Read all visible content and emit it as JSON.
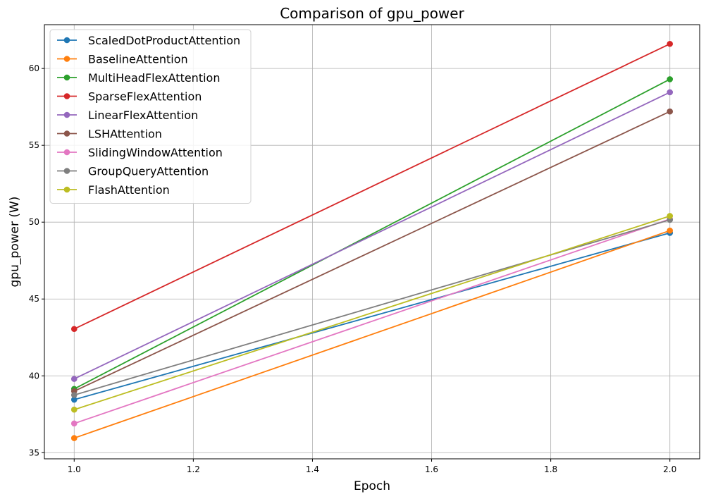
{
  "chart_data": {
    "type": "line",
    "title": "Comparison of gpu_power",
    "xlabel": "Epoch",
    "ylabel": "gpu_power (W)",
    "x": [
      1.0,
      2.0
    ],
    "xlim": [
      0.95,
      2.05
    ],
    "ylim": [
      34.6,
      62.85
    ],
    "xticks": [
      1.0,
      1.2,
      1.4,
      1.6,
      1.8,
      2.0
    ],
    "xtick_labels": [
      "1.0",
      "1.2",
      "1.4",
      "1.6",
      "1.8",
      "2.0"
    ],
    "yticks": [
      35,
      40,
      45,
      50,
      55,
      60
    ],
    "ytick_labels": [
      "35",
      "40",
      "45",
      "50",
      "55",
      "60"
    ],
    "grid": true,
    "legend_position": "top-left",
    "series": [
      {
        "name": "ScaledDotProductAttention",
        "color": "#1f77b4",
        "values": [
          38.45,
          49.3
        ]
      },
      {
        "name": "BaselineAttention",
        "color": "#ff7f0e",
        "values": [
          35.95,
          49.45
        ]
      },
      {
        "name": "MultiHeadFlexAttention",
        "color": "#2ca02c",
        "values": [
          39.15,
          59.3
        ]
      },
      {
        "name": "SparseFlexAttention",
        "color": "#d62728",
        "values": [
          43.05,
          61.6
        ]
      },
      {
        "name": "LinearFlexAttention",
        "color": "#9467bd",
        "values": [
          39.8,
          58.45
        ]
      },
      {
        "name": "LSHAttention",
        "color": "#8c564b",
        "values": [
          39.0,
          57.2
        ]
      },
      {
        "name": "SlidingWindowAttention",
        "color": "#e377c2",
        "values": [
          36.9,
          50.2
        ]
      },
      {
        "name": "GroupQueryAttention",
        "color": "#7f7f7f",
        "values": [
          38.75,
          50.15
        ]
      },
      {
        "name": "FlashAttention",
        "color": "#bcbd22",
        "values": [
          37.8,
          50.4
        ]
      }
    ]
  }
}
